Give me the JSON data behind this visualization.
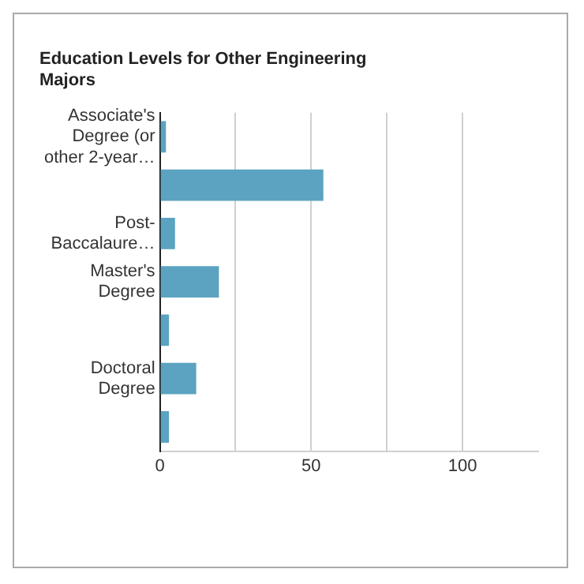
{
  "chart_data": {
    "type": "bar",
    "orientation": "horizontal",
    "title": "Education Levels for Other Engineering Majors",
    "categories": [
      "Associate's Degree (or other 2-year…",
      null,
      "Post-Baccalaure…",
      "Master's Degree",
      null,
      "Doctoral Degree",
      null
    ],
    "values": [
      2,
      54,
      5,
      19.5,
      3,
      12,
      3
    ],
    "color": "#5ba3c0",
    "xlim": [
      0,
      125
    ],
    "xticks": [
      0,
      {
        "value": 25,
        "label": null
      },
      50,
      {
        "value": 75,
        "label": null
      },
      100
    ],
    "grid": "x"
  }
}
